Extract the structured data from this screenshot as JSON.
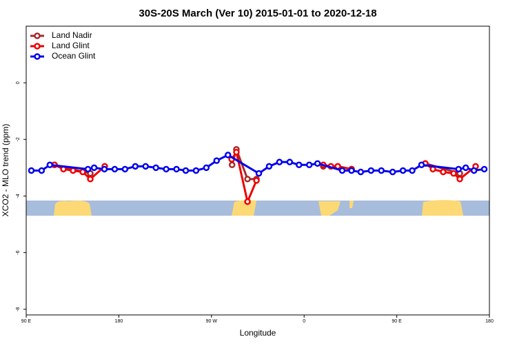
{
  "chart_data": {
    "type": "line",
    "title": "30S-20S March (Ver 10)   2015-01-01 to 2020-12-18",
    "x_label": "Longitude",
    "y_label": "XCO2 - MLO trend (ppm)",
    "xlim": [
      90,
      540
    ],
    "xticks": [
      {
        "value": 90,
        "label": "90 E"
      },
      {
        "value": 180,
        "label": "180"
      },
      {
        "value": 270,
        "label": "90 W"
      },
      {
        "value": 360,
        "label": "0"
      },
      {
        "value": 450,
        "label": "90 E"
      },
      {
        "value": 540,
        "label": "180"
      }
    ],
    "ylim": [
      -8.2,
      2
    ],
    "yticks": [
      0,
      -2,
      -4,
      -6,
      -8
    ],
    "legend": "top-left",
    "series": [
      {
        "name": "Land Nadir",
        "color": "#a52a2a",
        "x": [
          117.5,
          152.3,
          null,
          290,
          294.2,
          305,
          313.7,
          null,
          378.6,
          392.7,
          406.1,
          null,
          477.7,
          511.2
        ],
        "values": [
          -2.9,
          -3.2,
          null,
          -2.9,
          -2.35,
          -3.4,
          -3.4,
          null,
          -2.95,
          -2.95,
          -3.05,
          null,
          -2.85,
          -3.2
        ]
      },
      {
        "name": "Land Glint",
        "color": "#ee0000",
        "x": [
          117.5,
          126.2,
          135.5,
          144.9,
          152.3,
          166.3,
          null,
          289.6,
          294.2,
          305,
          313.7,
          null,
          378.6,
          386,
          392.7,
          406.1,
          null,
          477.7,
          485.1,
          495.1,
          505.2,
          511.2,
          526.6
        ],
        "values": [
          -2.9,
          -3.05,
          -3.1,
          -3.15,
          -3.4,
          -2.95,
          null,
          -2.7,
          -2.45,
          -4.2,
          -3.45,
          null,
          -2.9,
          -2.95,
          -2.95,
          -3.05,
          null,
          -2.85,
          -3.05,
          -3.15,
          -3.2,
          -3.4,
          -2.95
        ]
      },
      {
        "name": "Ocean Glint",
        "color": "#0000ee",
        "x": [
          95,
          105,
          113,
          150,
          156,
          166,
          176,
          186,
          196,
          206,
          216,
          226,
          236,
          245,
          255,
          265,
          275,
          286,
          316,
          326,
          336,
          346,
          355,
          365,
          373,
          397,
          406,
          415,
          425,
          435,
          446,
          456,
          465,
          474,
          510,
          517,
          525,
          535
        ],
        "values": [
          -3.1,
          -3.1,
          -2.9,
          -3.05,
          -3.0,
          -3.05,
          -3.05,
          -3.05,
          -2.95,
          -2.95,
          -3.0,
          -3.05,
          -3.05,
          -3.1,
          -3.1,
          -3.0,
          -2.75,
          -2.55,
          -3.2,
          -2.95,
          -2.8,
          -2.8,
          -2.9,
          -2.9,
          -2.85,
          -3.1,
          -3.1,
          -3.15,
          -3.1,
          -3.1,
          -3.15,
          -3.1,
          -3.1,
          -2.9,
          -3.05,
          -3.0,
          -3.1,
          -3.05
        ]
      }
    ]
  }
}
